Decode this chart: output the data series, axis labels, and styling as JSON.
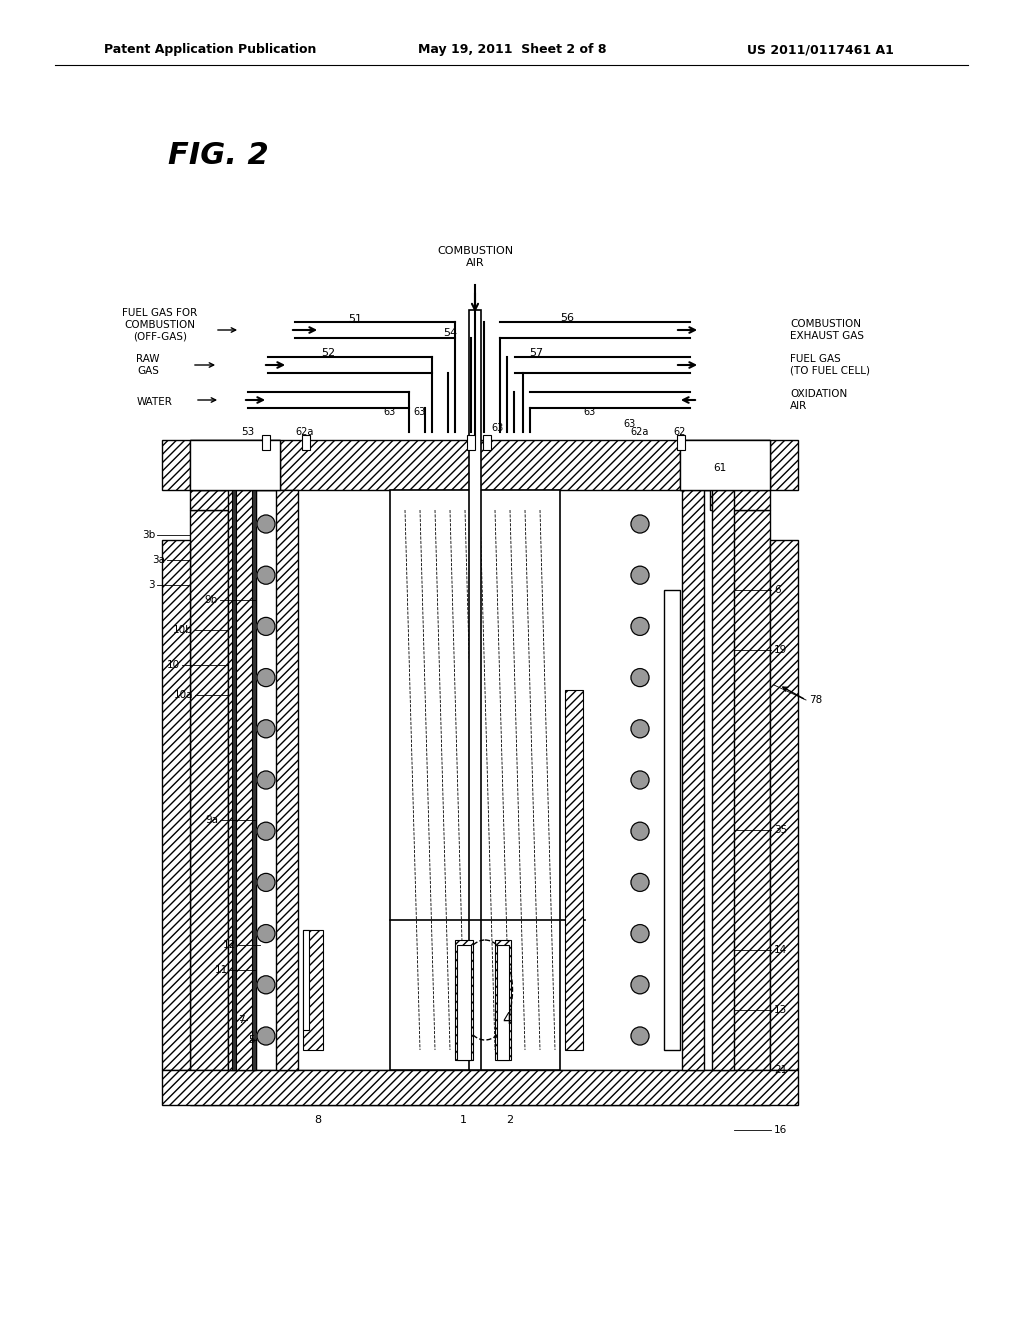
{
  "bg_color": "#ffffff",
  "fig_label": "FIG. 2",
  "header_left": "Patent Application Publication",
  "header_mid": "May 19, 2011  Sheet 2 of 8",
  "header_right": "US 2011/0117461 A1"
}
